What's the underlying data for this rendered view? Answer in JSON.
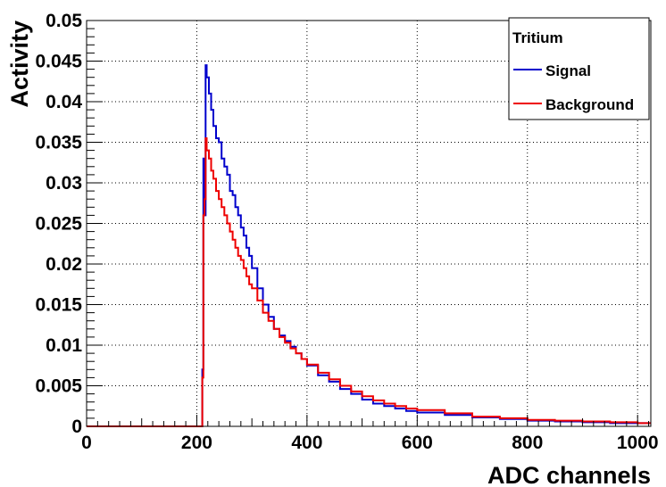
{
  "chart_data": {
    "type": "line",
    "title": "",
    "xlabel": "ADC channels",
    "ylabel": "Activity",
    "xlim": [
      0,
      1024
    ],
    "ylim": [
      0,
      0.05
    ],
    "grid": true,
    "xticks": [
      "0",
      "200",
      "400",
      "600",
      "800",
      "1000"
    ],
    "xtick_values": [
      0,
      200,
      400,
      600,
      800,
      1000
    ],
    "yticks": [
      "0",
      "0.005",
      "0.01",
      "0.015",
      "0.02",
      "0.025",
      "0.03",
      "0.035",
      "0.04",
      "0.045",
      "0.05"
    ],
    "ytick_values": [
      0,
      0.005,
      0.01,
      0.015,
      0.02,
      0.025,
      0.03,
      0.035,
      0.04,
      0.045,
      0.05
    ],
    "legend": {
      "title": "Tritium",
      "position": "top-right"
    },
    "x": [
      0,
      205,
      210,
      212,
      214,
      216,
      218,
      222,
      226,
      230,
      235,
      240,
      245,
      250,
      255,
      260,
      265,
      270,
      275,
      280,
      285,
      290,
      295,
      300,
      310,
      320,
      330,
      340,
      350,
      360,
      370,
      380,
      390,
      400,
      420,
      440,
      460,
      480,
      500,
      520,
      540,
      560,
      580,
      600,
      650,
      700,
      750,
      800,
      850,
      900,
      950,
      1000,
      1024
    ],
    "series": [
      {
        "name": "Signal",
        "color": "#0000cc",
        "values": [
          0,
          0,
          0.007,
          0.033,
          0.026,
          0.0445,
          0.043,
          0.041,
          0.039,
          0.037,
          0.0355,
          0.035,
          0.033,
          0.032,
          0.031,
          0.029,
          0.0285,
          0.027,
          0.026,
          0.0245,
          0.0235,
          0.022,
          0.021,
          0.0195,
          0.017,
          0.015,
          0.0135,
          0.012,
          0.0112,
          0.0105,
          0.0098,
          0.009,
          0.0083,
          0.0075,
          0.0063,
          0.0055,
          0.0046,
          0.004,
          0.0033,
          0.0028,
          0.0025,
          0.0022,
          0.0019,
          0.0017,
          0.0014,
          0.0011,
          0.0009,
          0.0007,
          0.0006,
          0.0005,
          0.0004,
          0.0004,
          0.0004
        ]
      },
      {
        "name": "Background",
        "color": "#ee0000",
        "values": [
          0,
          0,
          0.006,
          0.026,
          0.028,
          0.0355,
          0.034,
          0.033,
          0.0315,
          0.0305,
          0.029,
          0.028,
          0.027,
          0.026,
          0.025,
          0.024,
          0.023,
          0.022,
          0.021,
          0.0205,
          0.0195,
          0.0185,
          0.0175,
          0.017,
          0.0155,
          0.014,
          0.013,
          0.012,
          0.011,
          0.0103,
          0.0096,
          0.009,
          0.0083,
          0.0076,
          0.0066,
          0.0058,
          0.005,
          0.0043,
          0.0037,
          0.0032,
          0.0028,
          0.0025,
          0.0022,
          0.002,
          0.0016,
          0.0012,
          0.001,
          0.0008,
          0.0007,
          0.0006,
          0.0005,
          0.0004,
          0.0004
        ]
      }
    ]
  }
}
